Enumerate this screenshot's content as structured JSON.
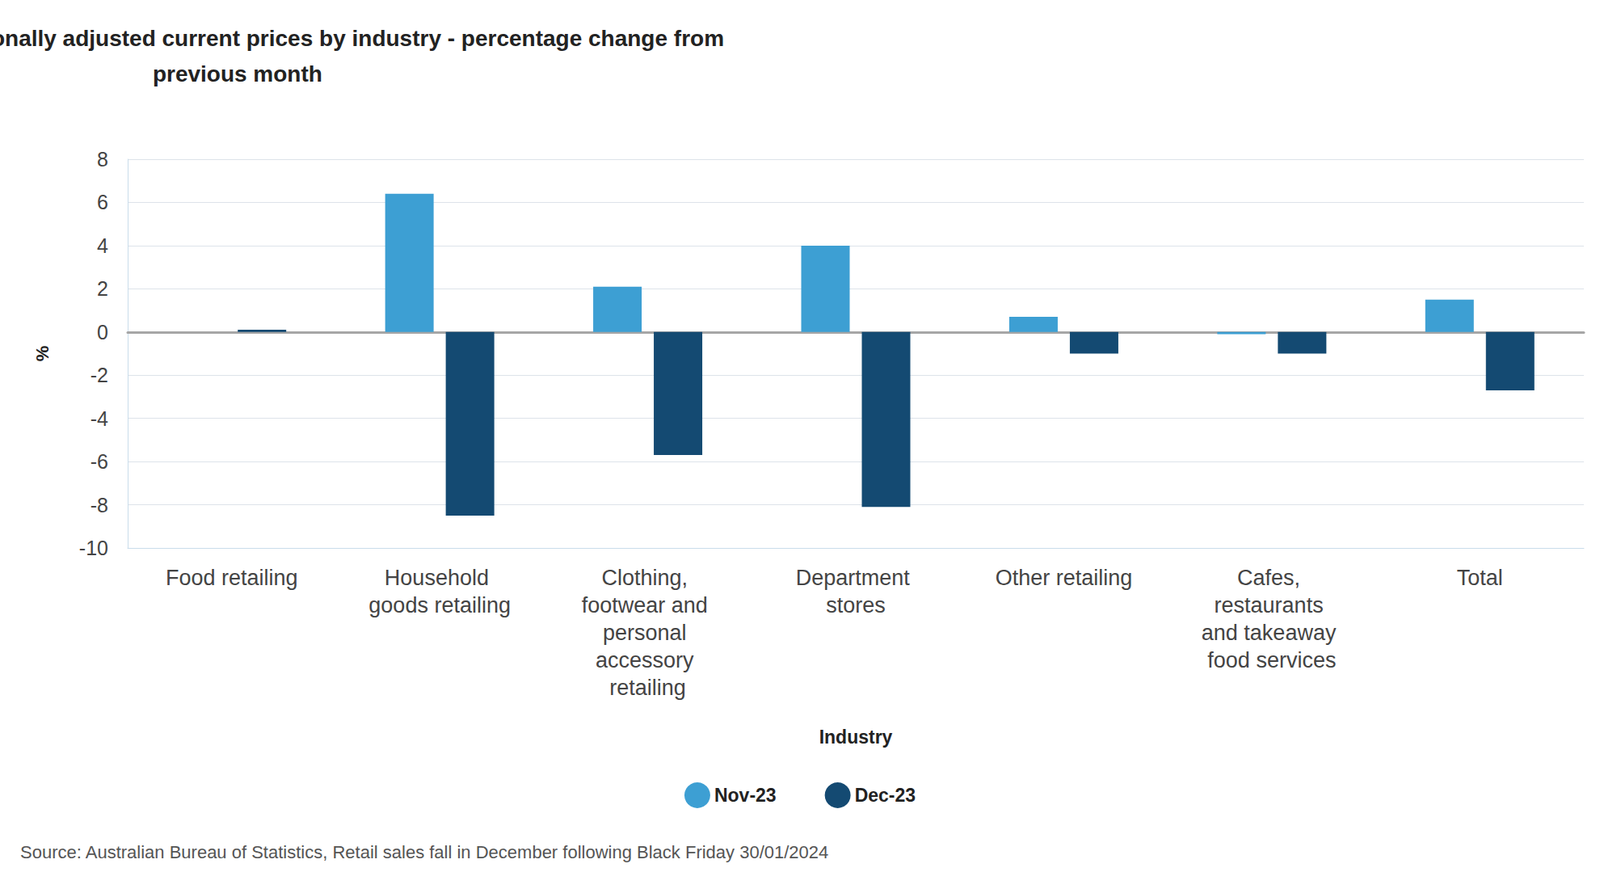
{
  "chart_data": {
    "type": "bar",
    "title": "Monthly turnover, seasonally adjusted current prices by industry - percentage change from previous month",
    "x_label": "Industry",
    "y_label": "%",
    "source": "Source: Australian Bureau of Statistics, Retail sales fall in December following Black Friday 30/01/2024",
    "categories": [
      "Food retailing",
      "Household goods retailing",
      "Clothing, footwear and personal accessory retailing",
      "Department stores",
      "Other retailing",
      "Cafes, restaurants and takeaway food services",
      "Total"
    ],
    "series": [
      {
        "name": "Nov-23",
        "color": "#3d9fd3",
        "values": [
          0.0,
          6.4,
          2.1,
          4.0,
          0.7,
          -0.1,
          1.5
        ]
      },
      {
        "name": "Dec-23",
        "color": "#144a72",
        "values": [
          0.1,
          -8.5,
          -5.7,
          -8.1,
          -1.0,
          -1.0,
          -2.7
        ]
      }
    ],
    "ylim": [
      -10,
      8
    ],
    "yticks": [
      -10,
      -8,
      -6,
      -4,
      -2,
      0,
      2,
      4,
      6,
      8
    ],
    "grid": true,
    "legend": "bottom"
  }
}
